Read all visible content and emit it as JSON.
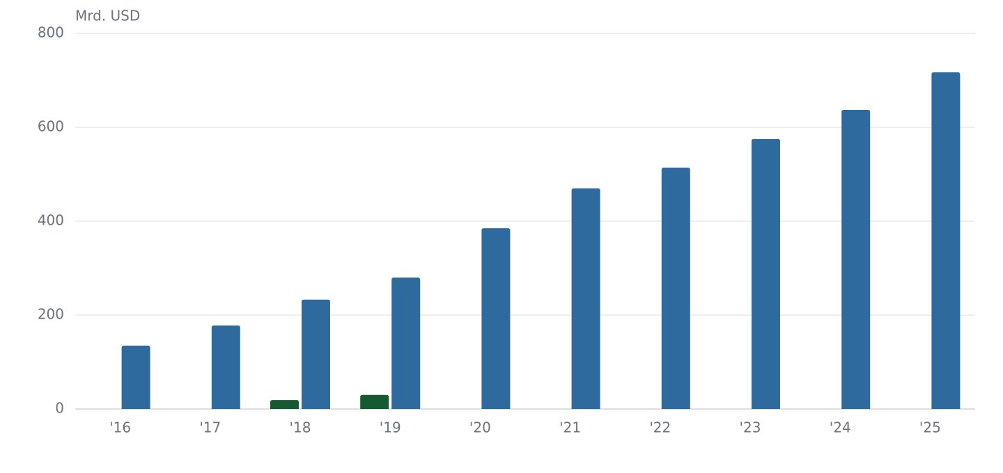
{
  "chart_data": {
    "type": "bar",
    "y_label": "Mrd. USD",
    "categories": [
      "'16",
      "'17",
      "'18",
      "'19",
      "'20",
      "'21",
      "'22",
      "'23",
      "'24",
      "'25"
    ],
    "series": [
      {
        "color": "#165a32",
        "values": [
          null,
          null,
          19,
          30,
          null,
          null,
          null,
          null,
          null,
          null
        ]
      },
      {
        "color": "#2e6a9e",
        "values": [
          135,
          178,
          233,
          280,
          385,
          470,
          514,
          575,
          637,
          717
        ]
      }
    ],
    "ylim": [
      0,
      800
    ],
    "yticks": [
      0,
      200,
      400,
      600,
      800
    ],
    "grid": true
  }
}
